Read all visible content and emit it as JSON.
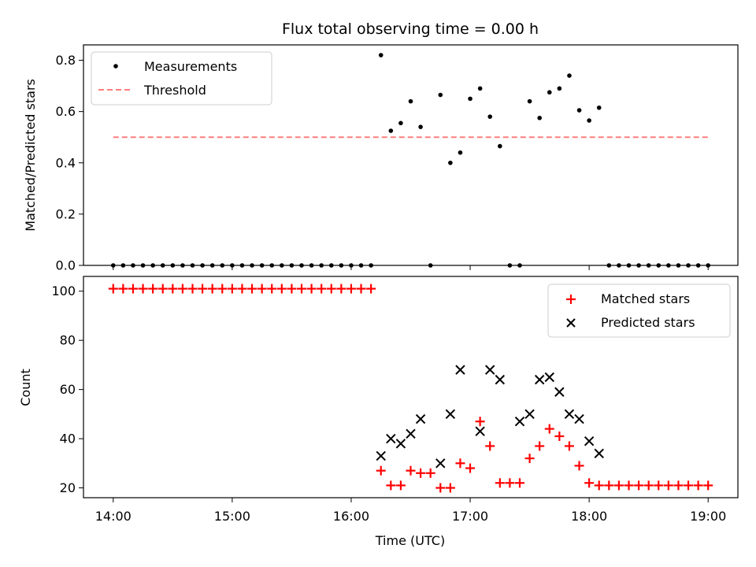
{
  "chart_data": {
    "title": "Flux total observing time = 0.00 h",
    "xlabel": "Time (UTC)",
    "x_ticks": [
      "14:00",
      "15:00",
      "16:00",
      "17:00",
      "18:00",
      "19:00"
    ],
    "x_range_hours": [
      13.75,
      19.25
    ],
    "panels": [
      {
        "type": "scatter",
        "ylabel": "Matched/Predicted stars",
        "ylim": [
          0,
          0.86
        ],
        "y_ticks": [
          "0.0",
          "0.2",
          "0.4",
          "0.6",
          "0.8"
        ],
        "legend_position": "top-left",
        "series": [
          {
            "name": "Measurements",
            "color": "#000000",
            "marker": "dot",
            "x": [
              "14:00",
              "14:05",
              "14:10",
              "14:15",
              "14:20",
              "14:25",
              "14:30",
              "14:35",
              "14:40",
              "14:45",
              "14:50",
              "14:55",
              "15:00",
              "15:05",
              "15:10",
              "15:15",
              "15:20",
              "15:25",
              "15:30",
              "15:35",
              "15:40",
              "15:45",
              "15:50",
              "15:55",
              "16:00",
              "16:05",
              "16:10",
              "16:15",
              "16:20",
              "16:25",
              "16:30",
              "16:35",
              "16:40",
              "16:45",
              "16:50",
              "16:55",
              "17:00",
              "17:05",
              "17:10",
              "17:15",
              "17:20",
              "17:25",
              "17:30",
              "17:35",
              "17:40",
              "17:45",
              "17:50",
              "17:55",
              "18:00",
              "18:05",
              "18:10",
              "18:15",
              "18:20",
              "18:25",
              "18:30",
              "18:35",
              "18:40",
              "18:45",
              "18:50",
              "18:55",
              "19:00"
            ],
            "y": [
              0,
              0,
              0,
              0,
              0,
              0,
              0,
              0,
              0,
              0,
              0,
              0,
              0,
              0,
              0,
              0,
              0,
              0,
              0,
              0,
              0,
              0,
              0,
              0,
              0,
              0,
              0,
              0.82,
              0.525,
              0.555,
              0.64,
              0.54,
              0,
              0.665,
              0.4,
              0.44,
              0.65,
              0.69,
              0.58,
              0.465,
              0,
              0,
              0.64,
              0.575,
              0.675,
              0.69,
              0.74,
              0.605,
              0.565,
              0.615,
              0,
              0,
              0,
              0,
              0,
              0,
              0,
              0,
              0,
              0,
              0
            ]
          },
          {
            "name": "Threshold",
            "color": "#ff7f7f",
            "style": "dashed",
            "x": [
              "14:00",
              "19:00"
            ],
            "y": [
              0.5,
              0.5
            ]
          }
        ]
      },
      {
        "type": "scatter",
        "ylabel": "Count",
        "ylim": [
          16,
          106
        ],
        "y_ticks": [
          "20",
          "40",
          "60",
          "80",
          "100"
        ],
        "legend_position": "top-right",
        "series": [
          {
            "name": "Matched stars",
            "color": "#ff0000",
            "marker": "plus",
            "x": [
              "14:00",
              "14:05",
              "14:10",
              "14:15",
              "14:20",
              "14:25",
              "14:30",
              "14:35",
              "14:40",
              "14:45",
              "14:50",
              "14:55",
              "15:00",
              "15:05",
              "15:10",
              "15:15",
              "15:20",
              "15:25",
              "15:30",
              "15:35",
              "15:40",
              "15:45",
              "15:50",
              "15:55",
              "16:00",
              "16:05",
              "16:10",
              "16:15",
              "16:20",
              "16:25",
              "16:30",
              "16:35",
              "16:40",
              "16:45",
              "16:50",
              "16:55",
              "17:00",
              "17:05",
              "17:10",
              "17:15",
              "17:20",
              "17:25",
              "17:30",
              "17:35",
              "17:40",
              "17:45",
              "17:50",
              "17:55",
              "18:00",
              "18:05",
              "18:10",
              "18:15",
              "18:20",
              "18:25",
              "18:30",
              "18:35",
              "18:40",
              "18:45",
              "18:50",
              "18:55",
              "19:00"
            ],
            "y": [
              101,
              101,
              101,
              101,
              101,
              101,
              101,
              101,
              101,
              101,
              101,
              101,
              101,
              101,
              101,
              101,
              101,
              101,
              101,
              101,
              101,
              101,
              101,
              101,
              101,
              101,
              101,
              27,
              21,
              21,
              27,
              26,
              26,
              20,
              20,
              30,
              28,
              47,
              37,
              22,
              22,
              22,
              32,
              37,
              44,
              41,
              37,
              29,
              22,
              21,
              21,
              21,
              21,
              21,
              21,
              21,
              21,
              21,
              21,
              21,
              21
            ]
          },
          {
            "name": "Predicted stars",
            "color": "#000000",
            "marker": "x",
            "x": [
              "16:15",
              "16:20",
              "16:25",
              "16:30",
              "16:35",
              "16:45",
              "16:50",
              "16:55",
              "17:05",
              "17:10",
              "17:15",
              "17:25",
              "17:30",
              "17:35",
              "17:40",
              "17:45",
              "17:50",
              "17:55",
              "18:00",
              "18:05"
            ],
            "y": [
              33,
              40,
              38,
              42,
              48,
              30,
              50,
              68,
              43,
              68,
              64,
              47,
              50,
              64,
              65,
              59,
              50,
              48,
              39,
              34
            ]
          }
        ]
      }
    ]
  }
}
